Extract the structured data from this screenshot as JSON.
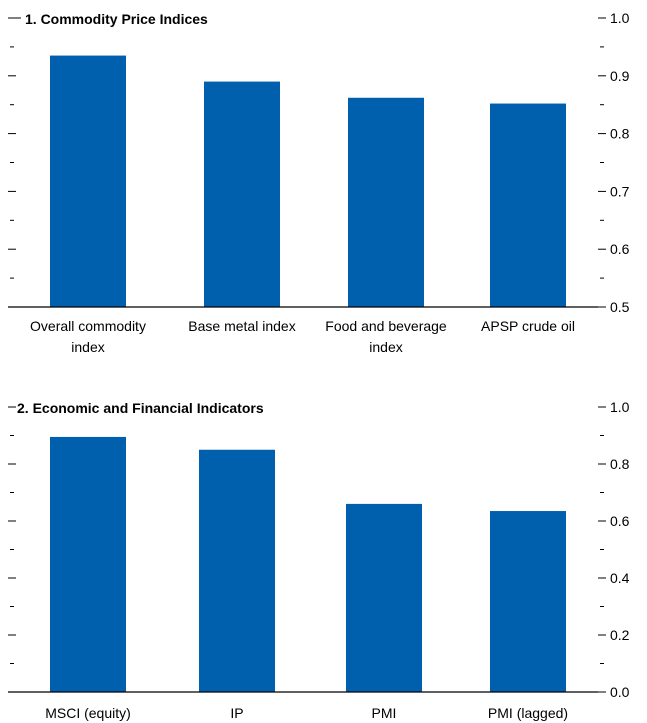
{
  "chart_data": [
    {
      "type": "bar",
      "title": "1. Commodity Price Indices",
      "categories": [
        [
          "Overall commodity",
          "index"
        ],
        [
          "Base metal index"
        ],
        [
          "Food and beverage",
          "index"
        ],
        [
          "APSP crude oil"
        ]
      ],
      "values": [
        0.935,
        0.89,
        0.862,
        0.852
      ],
      "ylim": [
        0.5,
        1.0
      ],
      "yticks": [
        "0.5",
        "0.6",
        "0.7",
        "0.8",
        "0.9",
        "1.0"
      ],
      "ytick_values": [
        0.5,
        0.6,
        0.7,
        0.8,
        0.9,
        1.0
      ],
      "y_axis_side": "right",
      "bar_color": "#0060ae"
    },
    {
      "type": "bar",
      "title": "2. Economic and Financial Indicators",
      "categories": [
        [
          "MSCI (equity)"
        ],
        [
          "IP"
        ],
        [
          "PMI"
        ],
        [
          "PMI (lagged)"
        ]
      ],
      "values": [
        0.895,
        0.85,
        0.66,
        0.635
      ],
      "ylim": [
        0.0,
        1.0
      ],
      "yticks": [
        "0.0",
        "0.2",
        "0.4",
        "0.6",
        "0.8",
        "1.0"
      ],
      "ytick_values": [
        0.0,
        0.2,
        0.4,
        0.6,
        0.8,
        1.0
      ],
      "y_axis_side": "right",
      "bar_color": "#0060ae"
    }
  ]
}
